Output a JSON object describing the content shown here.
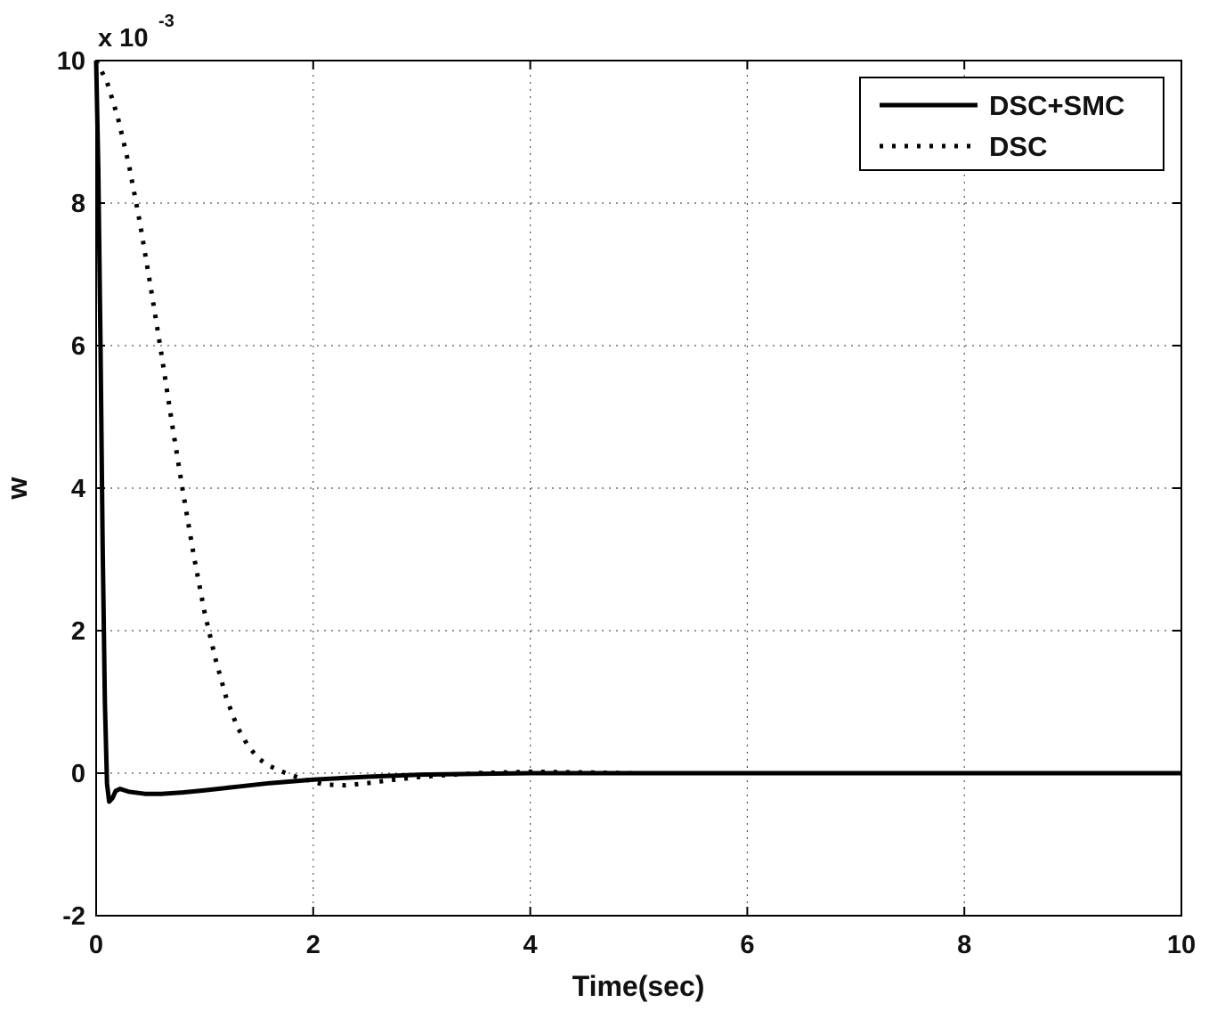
{
  "chart_data": {
    "type": "line",
    "title": "",
    "xlabel": "Time(sec)",
    "ylabel": "w",
    "y_multiplier": {
      "base": "x 10",
      "exponent": "-3"
    },
    "xlim": [
      0,
      10
    ],
    "ylim": [
      -2,
      10
    ],
    "x_ticks": [
      0,
      2,
      4,
      6,
      8,
      10
    ],
    "y_ticks": [
      -2,
      0,
      2,
      4,
      6,
      8,
      10
    ],
    "grid": true,
    "legend_position": "top-right",
    "series": [
      {
        "name": "DSC+SMC",
        "style": "solid",
        "color": "#000000",
        "x": [
          0,
          0.02,
          0.04,
          0.06,
          0.08,
          0.1,
          0.12,
          0.15,
          0.18,
          0.22,
          0.3,
          0.45,
          0.6,
          0.8,
          1.0,
          1.3,
          1.6,
          2.0,
          2.5,
          3.0,
          3.5,
          4.0,
          5.0,
          6.0,
          7.0,
          8.0,
          9.0,
          10.0
        ],
        "y": [
          10,
          8.5,
          6.0,
          3.2,
          1.0,
          -0.15,
          -0.4,
          -0.35,
          -0.25,
          -0.22,
          -0.26,
          -0.29,
          -0.29,
          -0.27,
          -0.24,
          -0.19,
          -0.14,
          -0.09,
          -0.05,
          -0.02,
          -0.01,
          0,
          0,
          0,
          0,
          0,
          0,
          0
        ]
      },
      {
        "name": "DSC",
        "style": "dotted",
        "color": "#000000",
        "x": [
          0,
          0.1,
          0.2,
          0.3,
          0.4,
          0.5,
          0.6,
          0.7,
          0.8,
          0.9,
          1.0,
          1.1,
          1.2,
          1.3,
          1.4,
          1.5,
          1.6,
          1.7,
          1.75,
          1.9,
          2.1,
          2.3,
          2.5,
          2.7,
          3.0,
          3.5,
          4.0,
          4.5,
          5.0,
          6.0,
          7.0,
          8.0,
          9.0,
          10.0
        ],
        "y": [
          10,
          9.7,
          9.2,
          8.55,
          7.75,
          6.85,
          5.9,
          4.9,
          3.95,
          3.05,
          2.25,
          1.6,
          1.05,
          0.65,
          0.38,
          0.2,
          0.1,
          0.03,
          0.0,
          -0.08,
          -0.16,
          -0.17,
          -0.14,
          -0.1,
          -0.05,
          0,
          0.02,
          0.01,
          0,
          0,
          0,
          0,
          0,
          0
        ]
      }
    ]
  }
}
